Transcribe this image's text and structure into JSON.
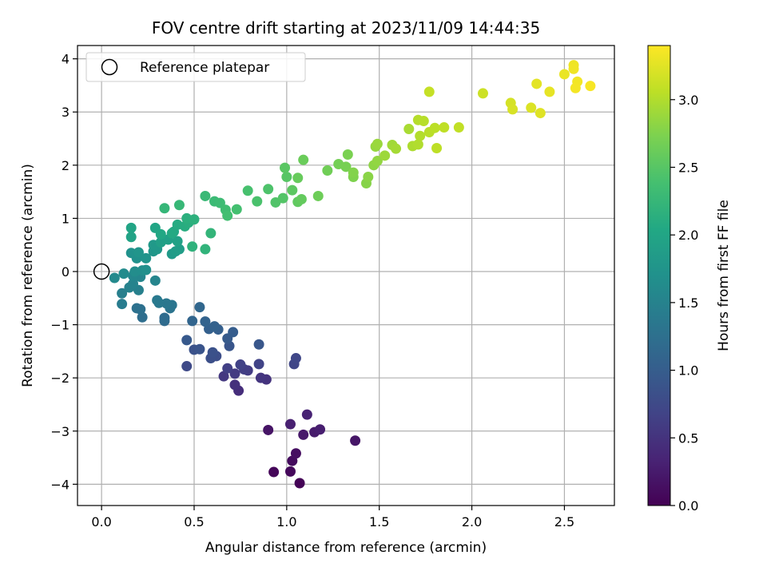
{
  "chart_data": {
    "type": "scatter",
    "title": "FOV centre drift starting at 2023/11/09 14:44:35",
    "xlabel": "Angular distance from reference (arcmin)",
    "ylabel": "Rotation from reference (arcmin)",
    "xlim": [
      -0.13,
      2.77
    ],
    "ylim": [
      -4.4,
      4.25
    ],
    "xticks": [
      0.0,
      0.5,
      1.0,
      1.5,
      2.0,
      2.5
    ],
    "xtick_labels": [
      "0.0",
      "0.5",
      "1.0",
      "1.5",
      "2.0",
      "2.5"
    ],
    "yticks": [
      -4,
      -3,
      -2,
      -1,
      0,
      1,
      2,
      3,
      4
    ],
    "ytick_labels": [
      "−4",
      "−3",
      "−2",
      "−1",
      "0",
      "1",
      "2",
      "3",
      "4"
    ],
    "grid": true,
    "legend": {
      "position": "top-left",
      "entries": [
        "Reference platepar"
      ]
    },
    "reference_point": {
      "x": 0.0,
      "y": 0.0,
      "label": "Reference platepar"
    },
    "colorbar": {
      "label": "Hours from first FF file",
      "colormap": "viridis",
      "range": [
        0.0,
        3.4
      ],
      "ticks": [
        0.0,
        0.5,
        1.0,
        1.5,
        2.0,
        2.5,
        3.0
      ],
      "tick_labels": [
        "0.0",
        "0.5",
        "1.0",
        "1.5",
        "2.0",
        "2.5",
        "3.0"
      ]
    },
    "series": [
      {
        "color_value": "hours",
        "points": [
          {
            "x": 1.07,
            "y": -3.98,
            "c": 0.02
          },
          {
            "x": 0.93,
            "y": -3.77,
            "c": 0.05
          },
          {
            "x": 1.02,
            "y": -3.76,
            "c": 0.07
          },
          {
            "x": 1.03,
            "y": -3.56,
            "c": 0.1
          },
          {
            "x": 1.05,
            "y": -3.42,
            "c": 0.13
          },
          {
            "x": 0.9,
            "y": -2.98,
            "c": 0.18
          },
          {
            "x": 1.37,
            "y": -3.18,
            "c": 0.2
          },
          {
            "x": 1.09,
            "y": -3.07,
            "c": 0.23
          },
          {
            "x": 1.15,
            "y": -3.02,
            "c": 0.25
          },
          {
            "x": 1.18,
            "y": -2.97,
            "c": 0.28
          },
          {
            "x": 1.02,
            "y": -2.87,
            "c": 0.3
          },
          {
            "x": 1.11,
            "y": -2.69,
            "c": 0.33
          },
          {
            "x": 0.74,
            "y": -2.24,
            "c": 0.45
          },
          {
            "x": 0.72,
            "y": -2.13,
            "c": 0.48
          },
          {
            "x": 0.89,
            "y": -2.03,
            "c": 0.5
          },
          {
            "x": 0.86,
            "y": -2.0,
            "c": 0.52
          },
          {
            "x": 0.66,
            "y": -1.97,
            "c": 0.55
          },
          {
            "x": 0.72,
            "y": -1.92,
            "c": 0.58
          },
          {
            "x": 0.79,
            "y": -1.86,
            "c": 0.6
          },
          {
            "x": 0.77,
            "y": -1.84,
            "c": 0.62
          },
          {
            "x": 0.68,
            "y": -1.82,
            "c": 0.64
          },
          {
            "x": 0.75,
            "y": -1.75,
            "c": 0.66
          },
          {
            "x": 0.85,
            "y": -1.74,
            "c": 0.68
          },
          {
            "x": 1.04,
            "y": -1.74,
            "c": 0.7
          },
          {
            "x": 1.05,
            "y": -1.63,
            "c": 0.72
          },
          {
            "x": 0.46,
            "y": -1.78,
            "c": 0.75
          },
          {
            "x": 0.6,
            "y": -1.58,
            "c": 0.78
          },
          {
            "x": 0.62,
            "y": -1.59,
            "c": 0.8
          },
          {
            "x": 0.59,
            "y": -1.63,
            "c": 0.82
          },
          {
            "x": 0.6,
            "y": -1.52,
            "c": 0.84
          },
          {
            "x": 0.5,
            "y": -1.47,
            "c": 0.86
          },
          {
            "x": 0.53,
            "y": -1.46,
            "c": 0.88
          },
          {
            "x": 0.69,
            "y": -1.4,
            "c": 0.9
          },
          {
            "x": 0.85,
            "y": -1.37,
            "c": 0.92
          },
          {
            "x": 0.46,
            "y": -1.29,
            "c": 0.95
          },
          {
            "x": 0.68,
            "y": -1.26,
            "c": 0.97
          },
          {
            "x": 0.71,
            "y": -1.14,
            "c": 1.0
          },
          {
            "x": 0.63,
            "y": -1.09,
            "c": 1.02
          },
          {
            "x": 0.58,
            "y": -1.08,
            "c": 1.04
          },
          {
            "x": 0.61,
            "y": -1.03,
            "c": 1.06
          },
          {
            "x": 0.56,
            "y": -0.94,
            "c": 1.08
          },
          {
            "x": 0.49,
            "y": -0.93,
            "c": 1.1
          },
          {
            "x": 0.53,
            "y": -0.67,
            "c": 1.13
          },
          {
            "x": 0.34,
            "y": -0.93,
            "c": 1.18
          },
          {
            "x": 0.34,
            "y": -0.87,
            "c": 1.2
          },
          {
            "x": 0.22,
            "y": -0.86,
            "c": 1.22
          },
          {
            "x": 0.21,
            "y": -0.71,
            "c": 1.25
          },
          {
            "x": 0.19,
            "y": -0.69,
            "c": 1.27
          },
          {
            "x": 0.37,
            "y": -0.69,
            "c": 1.3
          },
          {
            "x": 0.38,
            "y": -0.63,
            "c": 1.32
          },
          {
            "x": 0.35,
            "y": -0.6,
            "c": 1.34
          },
          {
            "x": 0.31,
            "y": -0.59,
            "c": 1.36
          },
          {
            "x": 0.3,
            "y": -0.54,
            "c": 1.38
          },
          {
            "x": 0.11,
            "y": -0.61,
            "c": 1.42
          },
          {
            "x": 0.11,
            "y": -0.41,
            "c": 1.45
          },
          {
            "x": 0.2,
            "y": -0.35,
            "c": 1.47
          },
          {
            "x": 0.15,
            "y": -0.3,
            "c": 1.49
          },
          {
            "x": 0.17,
            "y": -0.23,
            "c": 1.51
          },
          {
            "x": 0.29,
            "y": -0.17,
            "c": 1.53
          },
          {
            "x": 0.21,
            "y": -0.1,
            "c": 1.55
          },
          {
            "x": 0.17,
            "y": -0.08,
            "c": 1.57
          },
          {
            "x": 0.07,
            "y": -0.12,
            "c": 1.6
          },
          {
            "x": 0.12,
            "y": -0.04,
            "c": 1.62
          },
          {
            "x": 0.18,
            "y": 0.0,
            "c": 1.64
          },
          {
            "x": 0.22,
            "y": 0.02,
            "c": 1.66
          },
          {
            "x": 0.24,
            "y": 0.03,
            "c": 1.68
          },
          {
            "x": 0.19,
            "y": 0.25,
            "c": 1.7
          },
          {
            "x": 0.16,
            "y": 0.35,
            "c": 1.72
          },
          {
            "x": 0.24,
            "y": 0.25,
            "c": 1.74
          },
          {
            "x": 0.2,
            "y": 0.36,
            "c": 1.76
          },
          {
            "x": 0.28,
            "y": 0.38,
            "c": 1.78
          },
          {
            "x": 0.3,
            "y": 0.42,
            "c": 1.8
          },
          {
            "x": 0.28,
            "y": 0.5,
            "c": 1.82
          },
          {
            "x": 0.38,
            "y": 0.33,
            "c": 1.84
          },
          {
            "x": 0.4,
            "y": 0.38,
            "c": 1.86
          },
          {
            "x": 0.42,
            "y": 0.42,
            "c": 1.88
          },
          {
            "x": 0.32,
            "y": 0.55,
            "c": 1.9
          },
          {
            "x": 0.36,
            "y": 0.6,
            "c": 1.92
          },
          {
            "x": 0.41,
            "y": 0.57,
            "c": 1.94
          },
          {
            "x": 0.16,
            "y": 0.65,
            "c": 1.96
          },
          {
            "x": 0.16,
            "y": 0.82,
            "c": 1.98
          },
          {
            "x": 0.29,
            "y": 0.82,
            "c": 2.0
          },
          {
            "x": 0.32,
            "y": 0.7,
            "c": 2.02
          },
          {
            "x": 0.39,
            "y": 0.75,
            "c": 2.04
          },
          {
            "x": 0.38,
            "y": 0.72,
            "c": 2.06
          },
          {
            "x": 0.41,
            "y": 0.88,
            "c": 2.08
          },
          {
            "x": 0.45,
            "y": 0.85,
            "c": 2.1
          },
          {
            "x": 0.47,
            "y": 0.92,
            "c": 2.12
          },
          {
            "x": 0.46,
            "y": 1.0,
            "c": 2.14
          },
          {
            "x": 0.5,
            "y": 0.98,
            "c": 2.16
          },
          {
            "x": 0.49,
            "y": 0.47,
            "c": 2.18
          },
          {
            "x": 0.56,
            "y": 0.42,
            "c": 2.2
          },
          {
            "x": 0.59,
            "y": 0.72,
            "c": 2.22
          },
          {
            "x": 0.34,
            "y": 1.19,
            "c": 2.24
          },
          {
            "x": 0.42,
            "y": 1.25,
            "c": 2.26
          },
          {
            "x": 0.56,
            "y": 1.42,
            "c": 2.28
          },
          {
            "x": 0.61,
            "y": 1.32,
            "c": 2.3
          },
          {
            "x": 0.64,
            "y": 1.29,
            "c": 2.32
          },
          {
            "x": 0.67,
            "y": 1.16,
            "c": 2.34
          },
          {
            "x": 0.68,
            "y": 1.05,
            "c": 2.36
          },
          {
            "x": 0.73,
            "y": 1.17,
            "c": 2.38
          },
          {
            "x": 0.79,
            "y": 1.52,
            "c": 2.4
          },
          {
            "x": 0.84,
            "y": 1.32,
            "c": 2.42
          },
          {
            "x": 0.9,
            "y": 1.55,
            "c": 2.44
          },
          {
            "x": 0.94,
            "y": 1.3,
            "c": 2.46
          },
          {
            "x": 0.98,
            "y": 1.38,
            "c": 2.48
          },
          {
            "x": 1.0,
            "y": 1.78,
            "c": 2.5
          },
          {
            "x": 0.99,
            "y": 1.95,
            "c": 2.52
          },
          {
            "x": 1.03,
            "y": 1.53,
            "c": 2.54
          },
          {
            "x": 1.06,
            "y": 1.31,
            "c": 2.56
          },
          {
            "x": 1.08,
            "y": 1.36,
            "c": 2.58
          },
          {
            "x": 1.06,
            "y": 1.76,
            "c": 2.6
          },
          {
            "x": 1.09,
            "y": 2.1,
            "c": 2.62
          },
          {
            "x": 1.17,
            "y": 1.42,
            "c": 2.64
          },
          {
            "x": 1.22,
            "y": 1.9,
            "c": 2.66
          },
          {
            "x": 1.28,
            "y": 2.02,
            "c": 2.68
          },
          {
            "x": 1.32,
            "y": 1.97,
            "c": 2.7
          },
          {
            "x": 1.33,
            "y": 2.2,
            "c": 2.72
          },
          {
            "x": 1.36,
            "y": 1.78,
            "c": 2.74
          },
          {
            "x": 1.36,
            "y": 1.86,
            "c": 2.76
          },
          {
            "x": 1.43,
            "y": 1.66,
            "c": 2.78
          },
          {
            "x": 1.44,
            "y": 1.78,
            "c": 2.8
          },
          {
            "x": 1.47,
            "y": 2.0,
            "c": 2.82
          },
          {
            "x": 1.49,
            "y": 2.08,
            "c": 2.84
          },
          {
            "x": 1.48,
            "y": 2.35,
            "c": 2.86
          },
          {
            "x": 1.49,
            "y": 2.4,
            "c": 2.88
          },
          {
            "x": 1.53,
            "y": 2.18,
            "c": 2.9
          },
          {
            "x": 1.57,
            "y": 2.38,
            "c": 2.92
          },
          {
            "x": 1.59,
            "y": 2.31,
            "c": 2.94
          },
          {
            "x": 1.66,
            "y": 2.68,
            "c": 2.96
          },
          {
            "x": 1.68,
            "y": 2.36,
            "c": 2.98
          },
          {
            "x": 1.71,
            "y": 2.39,
            "c": 3.0
          },
          {
            "x": 1.72,
            "y": 2.55,
            "c": 3.01
          },
          {
            "x": 1.71,
            "y": 2.85,
            "c": 3.02
          },
          {
            "x": 1.74,
            "y": 2.83,
            "c": 3.03
          },
          {
            "x": 1.77,
            "y": 2.62,
            "c": 3.04
          },
          {
            "x": 1.8,
            "y": 2.7,
            "c": 3.05
          },
          {
            "x": 1.81,
            "y": 2.32,
            "c": 3.06
          },
          {
            "x": 1.85,
            "y": 2.71,
            "c": 3.07
          },
          {
            "x": 1.93,
            "y": 2.71,
            "c": 3.08
          },
          {
            "x": 1.77,
            "y": 3.38,
            "c": 3.1
          },
          {
            "x": 2.06,
            "y": 3.35,
            "c": 3.14
          },
          {
            "x": 2.21,
            "y": 3.17,
            "c": 3.18
          },
          {
            "x": 2.22,
            "y": 3.05,
            "c": 3.2
          },
          {
            "x": 2.32,
            "y": 3.08,
            "c": 3.22
          },
          {
            "x": 2.37,
            "y": 2.98,
            "c": 3.24
          },
          {
            "x": 2.35,
            "y": 3.53,
            "c": 3.26
          },
          {
            "x": 2.42,
            "y": 3.38,
            "c": 3.28
          },
          {
            "x": 2.5,
            "y": 3.71,
            "c": 3.3
          },
          {
            "x": 2.55,
            "y": 3.88,
            "c": 3.32
          },
          {
            "x": 2.55,
            "y": 3.81,
            "c": 3.33
          },
          {
            "x": 2.57,
            "y": 3.57,
            "c": 3.34
          },
          {
            "x": 2.56,
            "y": 3.45,
            "c": 3.35
          },
          {
            "x": 2.64,
            "y": 3.49,
            "c": 3.37
          }
        ]
      }
    ]
  }
}
